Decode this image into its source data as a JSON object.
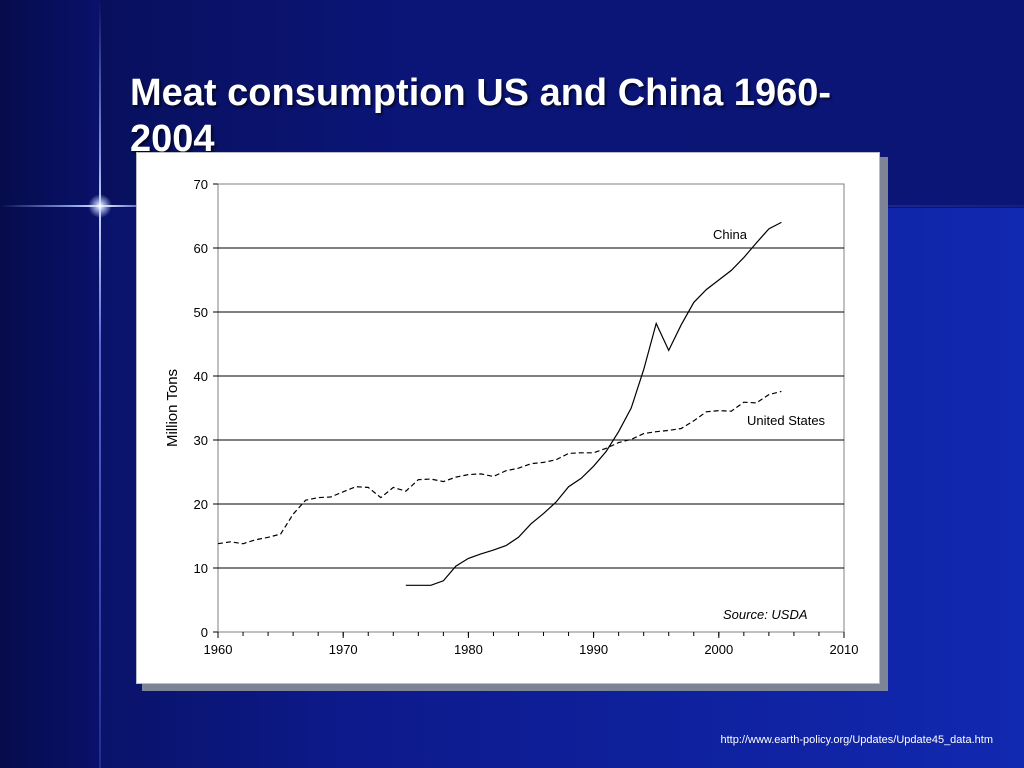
{
  "slide": {
    "title": "Meat consumption US and China 1960-2004",
    "footer_url": "http://www.earth-policy.org/Updates/Update45_data.htm"
  },
  "chart_data": {
    "type": "line",
    "title": "",
    "xlabel": "",
    "ylabel": "Million Tons",
    "xlim": [
      1960,
      2010
    ],
    "ylim": [
      0,
      70
    ],
    "x_ticks": [
      "1960",
      "1970",
      "1980",
      "1990",
      "2000",
      "2010"
    ],
    "y_ticks": [
      "0",
      "10",
      "20",
      "30",
      "40",
      "50",
      "60",
      "70"
    ],
    "horizontal_grid": true,
    "annotation": "Source: USDA",
    "series": [
      {
        "name": "China",
        "style": "solid",
        "label": "China",
        "x": [
          1975,
          1976,
          1977,
          1978,
          1979,
          1980,
          1981,
          1982,
          1983,
          1984,
          1985,
          1986,
          1987,
          1988,
          1989,
          1990,
          1991,
          1992,
          1993,
          1994,
          1995,
          1996,
          1997,
          1998,
          1999,
          2000,
          2001,
          2002,
          2003,
          2004,
          2005
        ],
        "y": [
          7.3,
          7.3,
          7.3,
          8.0,
          10.3,
          11.5,
          12.2,
          12.8,
          13.5,
          14.8,
          16.9,
          18.5,
          20.3,
          22.7,
          24.0,
          25.9,
          28.2,
          31.3,
          35.0,
          41.0,
          48.2,
          44.0,
          48.0,
          51.5,
          53.5,
          55.0,
          56.5,
          58.5,
          60.8,
          63.0,
          64.0
        ]
      },
      {
        "name": "United States",
        "style": "dashed",
        "label": "United States",
        "x": [
          1960,
          1961,
          1962,
          1963,
          1964,
          1965,
          1966,
          1967,
          1968,
          1969,
          1970,
          1971,
          1972,
          1973,
          1974,
          1975,
          1976,
          1977,
          1978,
          1979,
          1980,
          1981,
          1982,
          1983,
          1984,
          1985,
          1986,
          1987,
          1988,
          1989,
          1990,
          1991,
          1992,
          1993,
          1994,
          1995,
          1996,
          1997,
          1998,
          1999,
          2000,
          2001,
          2002,
          2003,
          2004,
          2005
        ],
        "y": [
          13.8,
          14.1,
          13.8,
          14.4,
          14.8,
          15.3,
          18.4,
          20.6,
          21.0,
          21.1,
          21.9,
          22.7,
          22.6,
          21.0,
          22.6,
          22.0,
          23.8,
          23.9,
          23.5,
          24.2,
          24.6,
          24.7,
          24.3,
          25.2,
          25.6,
          26.3,
          26.5,
          26.9,
          27.9,
          28.0,
          28.0,
          28.7,
          29.6,
          30.1,
          31.0,
          31.3,
          31.5,
          31.8,
          33.0,
          34.4,
          34.6,
          34.5,
          35.9,
          35.8,
          37.1,
          37.6
        ]
      }
    ],
    "colors": {
      "line": "#000000",
      "grid": "#000000",
      "plot_border": "#808080"
    }
  }
}
